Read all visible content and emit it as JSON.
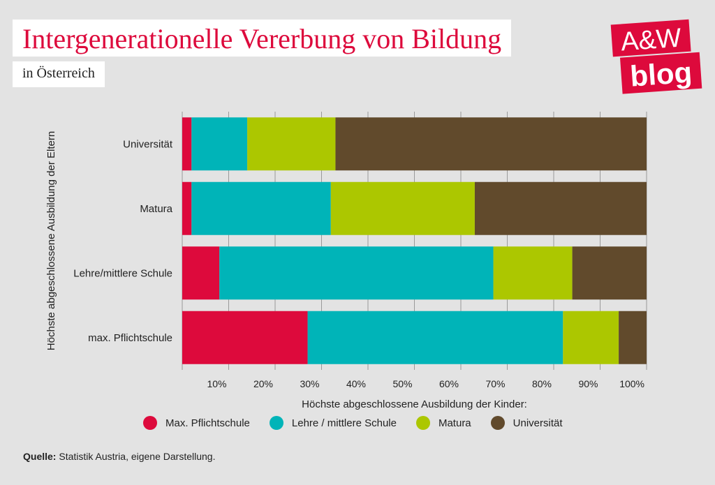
{
  "header": {
    "title": "Intergenerationelle Vererbung von Bildung",
    "subtitle": "in Österreich"
  },
  "logo": {
    "line1": "A&W",
    "line2": "blog",
    "color": "#dd0a3c"
  },
  "chart_data": {
    "type": "bar",
    "orientation": "horizontal",
    "stacked": true,
    "title": "Intergenerationelle Vererbung von Bildung",
    "subtitle": "in Österreich",
    "xlabel": "Höchste abgeschlossene Ausbildung der Kinder:",
    "ylabel": "Höchste abgeschlossene Ausbildung der Eltern",
    "xlim": [
      0,
      100
    ],
    "ticks": [
      10,
      20,
      30,
      40,
      50,
      60,
      70,
      80,
      90,
      100
    ],
    "tick_labels": [
      "10%",
      "20%",
      "30%",
      "40%",
      "50%",
      "60%",
      "70%",
      "80%",
      "90%",
      "100%"
    ],
    "categories": [
      "Universität",
      "Matura",
      "Lehre/mittlere Schule",
      "max. Pflichtschule"
    ],
    "series": [
      {
        "name": "Max. Pflichtschule",
        "color": "#dd0a3c",
        "values": [
          2,
          2,
          8,
          27
        ]
      },
      {
        "name": "Lehre / mittlere Schule",
        "color": "#00b4b8",
        "values": [
          12,
          30,
          59,
          55
        ]
      },
      {
        "name": "Matura",
        "color": "#acc700",
        "values": [
          19,
          31,
          17,
          12
        ]
      },
      {
        "name": "Universität",
        "color": "#614a2c",
        "values": [
          67,
          37,
          16,
          6
        ]
      }
    ],
    "legend_position": "bottom"
  },
  "legend": {
    "items": [
      {
        "label": "Max. Pflichtschule",
        "color": "#dd0a3c"
      },
      {
        "label": "Lehre / mittlere Schule",
        "color": "#00b4b8"
      },
      {
        "label": "Matura",
        "color": "#acc700"
      },
      {
        "label": "Universität",
        "color": "#614a2c"
      }
    ]
  },
  "source": {
    "label": "Quelle:",
    "text": "Statistik Austria, eigene Darstellung."
  }
}
